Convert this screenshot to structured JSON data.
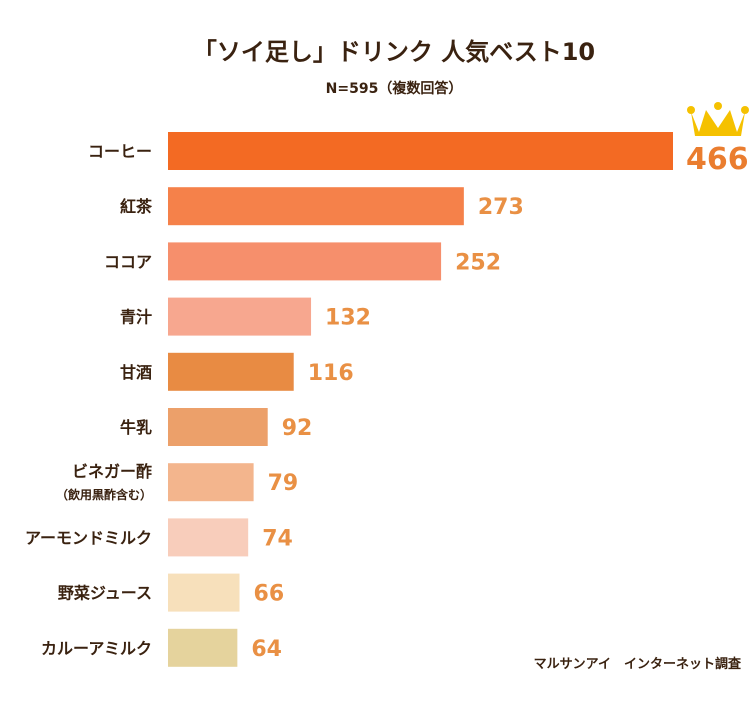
{
  "chart_data": {
    "type": "bar",
    "orientation": "horizontal",
    "title": "「ソイ足し」ドリンク 人気ベスト10",
    "subtitle": "N=595（複数回答）",
    "source": "マルサンアイ　インターネット調査",
    "categories": [
      [
        "コーヒー"
      ],
      [
        "紅茶"
      ],
      [
        "ココア"
      ],
      [
        "青汁"
      ],
      [
        "甘酒"
      ],
      [
        "牛乳"
      ],
      [
        "ビネガー酢",
        "（飲用黒酢含む）"
      ],
      [
        "アーモンドミルク"
      ],
      [
        "野菜ジュース"
      ],
      [
        "カルーアミルク"
      ]
    ],
    "values": [
      466,
      273,
      252,
      132,
      116,
      92,
      79,
      74,
      66,
      64
    ],
    "bar_colors": [
      "#f36a23",
      "#f5814a",
      "#f68f6c",
      "#f7a78f",
      "#e88b43",
      "#eca06a",
      "#f3b58d",
      "#f8cdbb",
      "#f7e0bb",
      "#e5d39d"
    ],
    "value_color": "#e99044",
    "top_value_color": "#ea7d2f",
    "crown_color": "#f5c100",
    "xlim": [
      0,
      466
    ],
    "grid": false,
    "legend": "none"
  }
}
